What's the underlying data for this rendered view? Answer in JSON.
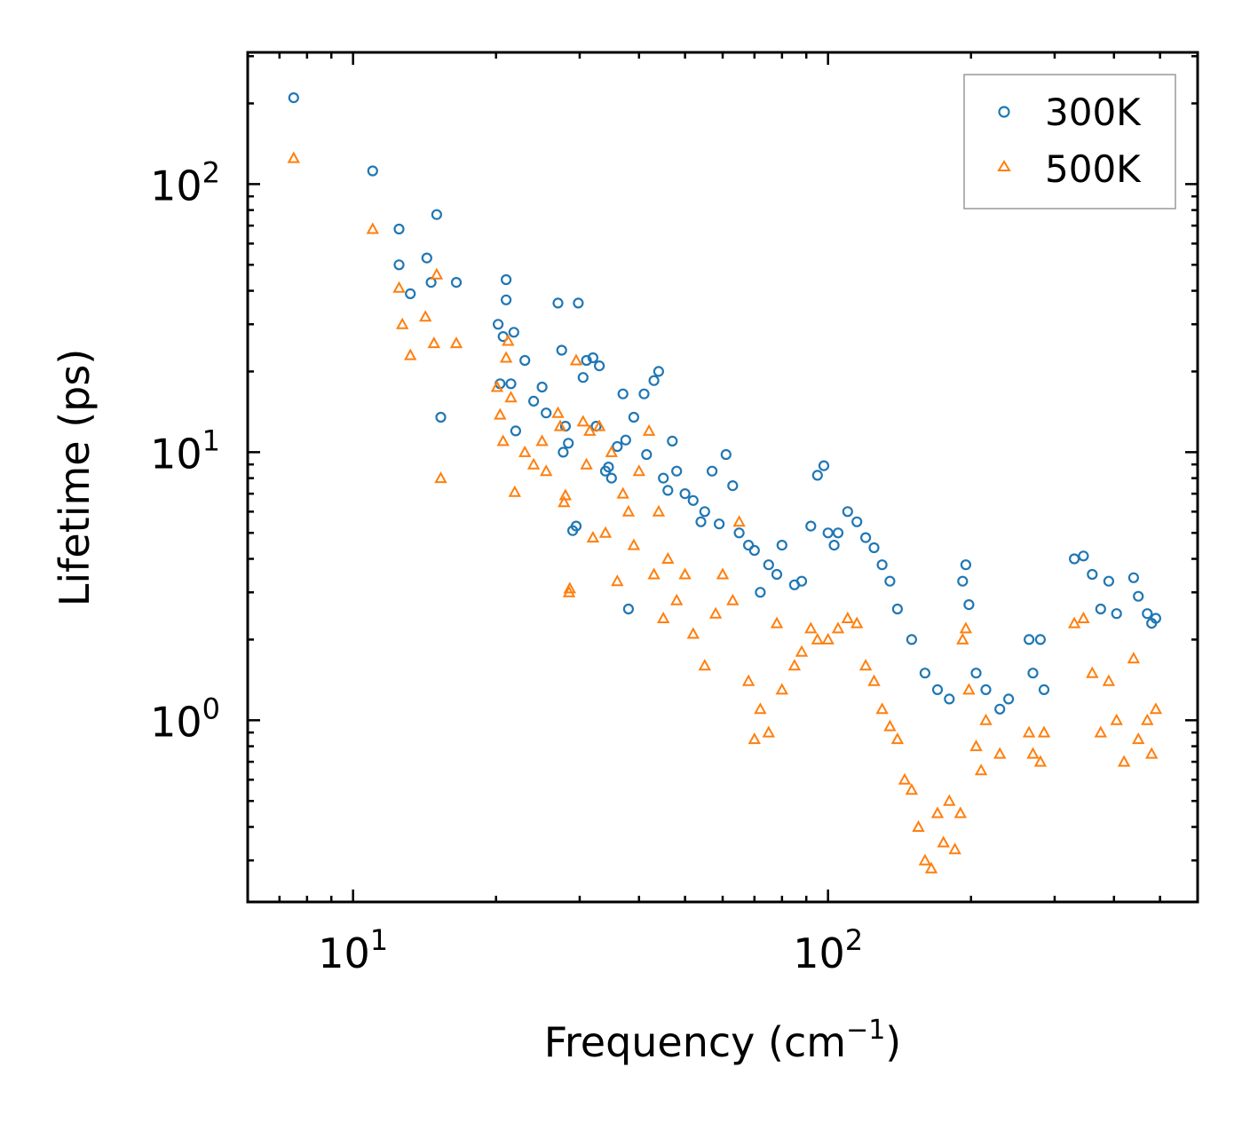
{
  "chart_data": {
    "type": "scatter",
    "title": "",
    "xlabel": "Frequency (cm",
    "xlabel_sup": "−1",
    "xlabel_tail": ")",
    "ylabel": "Lifetime (ps)",
    "xscale": "log",
    "yscale": "log",
    "xlim": [
      6.0,
      600
    ],
    "ylim": [
      0.21,
      310
    ],
    "x_ticks": [
      {
        "base": "10",
        "exp": "1",
        "value": 10
      },
      {
        "base": "10",
        "exp": "2",
        "value": 100
      }
    ],
    "y_ticks": [
      {
        "base": "10",
        "exp": "0",
        "value": 1
      },
      {
        "base": "10",
        "exp": "1",
        "value": 10
      },
      {
        "base": "10",
        "exp": "2",
        "value": 100
      }
    ],
    "legend_position": "top-right",
    "series": [
      {
        "name": "300K",
        "marker": "circle",
        "color": "#1f77b4",
        "points": [
          [
            7.5,
            210
          ],
          [
            11,
            112
          ],
          [
            12.5,
            68
          ],
          [
            12.5,
            50
          ],
          [
            13.2,
            39
          ],
          [
            14.3,
            53
          ],
          [
            14.6,
            43
          ],
          [
            15,
            77
          ],
          [
            15.3,
            13.5
          ],
          [
            16.5,
            43
          ],
          [
            20.2,
            30
          ],
          [
            20.4,
            18
          ],
          [
            20.7,
            27
          ],
          [
            21,
            37
          ],
          [
            21,
            44
          ],
          [
            21.5,
            18
          ],
          [
            21.8,
            28
          ],
          [
            22,
            12
          ],
          [
            23,
            22
          ],
          [
            24,
            15.5
          ],
          [
            25,
            17.5
          ],
          [
            25.5,
            14
          ],
          [
            27,
            36
          ],
          [
            27.5,
            24
          ],
          [
            27.7,
            10
          ],
          [
            28,
            12.5
          ],
          [
            28.4,
            10.8
          ],
          [
            29,
            5.1
          ],
          [
            29.5,
            5.3
          ],
          [
            29.8,
            36
          ],
          [
            30.5,
            19
          ],
          [
            31,
            22
          ],
          [
            32,
            22.5
          ],
          [
            32.5,
            12.5
          ],
          [
            33,
            21
          ],
          [
            34,
            8.5
          ],
          [
            34.5,
            8.8
          ],
          [
            35,
            8
          ],
          [
            36,
            10.5
          ],
          [
            37,
            16.5
          ],
          [
            37.5,
            11.1
          ],
          [
            38,
            2.6
          ],
          [
            39,
            13.5
          ],
          [
            41,
            16.5
          ],
          [
            41.5,
            9.8
          ],
          [
            43,
            18.5
          ],
          [
            44,
            20
          ],
          [
            45,
            8
          ],
          [
            46,
            7.2
          ],
          [
            47,
            11
          ],
          [
            48,
            8.5
          ],
          [
            50,
            7
          ],
          [
            52,
            6.6
          ],
          [
            54,
            5.5
          ],
          [
            55,
            6
          ],
          [
            57,
            8.5
          ],
          [
            59,
            5.4
          ],
          [
            61,
            9.8
          ],
          [
            63,
            7.5
          ],
          [
            65,
            5
          ],
          [
            68,
            4.5
          ],
          [
            70,
            4.3
          ],
          [
            72,
            3
          ],
          [
            75,
            3.8
          ],
          [
            78,
            3.5
          ],
          [
            80,
            4.5
          ],
          [
            85,
            3.2
          ],
          [
            88,
            3.3
          ],
          [
            92,
            5.3
          ],
          [
            95,
            8.2
          ],
          [
            98,
            8.9
          ],
          [
            100,
            5
          ],
          [
            103,
            4.5
          ],
          [
            105,
            5
          ],
          [
            110,
            6
          ],
          [
            115,
            5.5
          ],
          [
            120,
            4.8
          ],
          [
            125,
            4.4
          ],
          [
            130,
            3.8
          ],
          [
            135,
            3.3
          ],
          [
            140,
            2.6
          ],
          [
            150,
            2
          ],
          [
            160,
            1.5
          ],
          [
            170,
            1.3
          ],
          [
            180,
            1.2
          ],
          [
            192,
            3.3
          ],
          [
            195,
            3.8
          ],
          [
            198,
            2.7
          ],
          [
            205,
            1.5
          ],
          [
            215,
            1.3
          ],
          [
            230,
            1.1
          ],
          [
            240,
            1.2
          ],
          [
            265,
            2
          ],
          [
            270,
            1.5
          ],
          [
            280,
            2
          ],
          [
            285,
            1.3
          ],
          [
            330,
            4
          ],
          [
            345,
            4.1
          ],
          [
            360,
            3.5
          ],
          [
            375,
            2.6
          ],
          [
            390,
            3.3
          ],
          [
            405,
            2.5
          ],
          [
            440,
            3.4
          ],
          [
            450,
            2.9
          ],
          [
            470,
            2.5
          ],
          [
            480,
            2.3
          ],
          [
            490,
            2.4
          ]
        ]
      },
      {
        "name": "500K",
        "marker": "triangle",
        "color": "#ff7f0e",
        "points": [
          [
            7.5,
            125
          ],
          [
            11,
            68
          ],
          [
            12.5,
            41
          ],
          [
            12.7,
            30
          ],
          [
            13.2,
            23
          ],
          [
            14.2,
            32
          ],
          [
            14.8,
            25.5
          ],
          [
            15,
            46
          ],
          [
            15.3,
            8
          ],
          [
            16.5,
            25.5
          ],
          [
            20.1,
            17.5
          ],
          [
            20.4,
            13.8
          ],
          [
            20.7,
            11
          ],
          [
            21,
            22.5
          ],
          [
            21.2,
            26
          ],
          [
            21.5,
            16
          ],
          [
            21.9,
            7.1
          ],
          [
            23,
            10
          ],
          [
            24,
            9
          ],
          [
            25,
            11
          ],
          [
            25.5,
            8.5
          ],
          [
            27,
            14
          ],
          [
            27.3,
            12.5
          ],
          [
            27.8,
            6.5
          ],
          [
            28,
            6.9
          ],
          [
            28.5,
            3
          ],
          [
            28.6,
            3.1
          ],
          [
            29.5,
            22
          ],
          [
            30.5,
            13
          ],
          [
            31,
            9
          ],
          [
            31.5,
            12
          ],
          [
            32,
            4.8
          ],
          [
            33,
            12.5
          ],
          [
            34,
            5
          ],
          [
            35,
            10
          ],
          [
            36,
            3.3
          ],
          [
            37,
            7
          ],
          [
            38,
            6
          ],
          [
            39,
            4.5
          ],
          [
            40,
            8.5
          ],
          [
            42,
            12
          ],
          [
            43,
            3.5
          ],
          [
            44,
            6
          ],
          [
            45,
            2.4
          ],
          [
            46,
            4
          ],
          [
            48,
            2.8
          ],
          [
            50,
            3.5
          ],
          [
            52,
            2.1
          ],
          [
            55,
            1.6
          ],
          [
            58,
            2.5
          ],
          [
            60,
            3.5
          ],
          [
            63,
            2.8
          ],
          [
            65,
            5.5
          ],
          [
            68,
            1.4
          ],
          [
            70,
            0.85
          ],
          [
            72,
            1.1
          ],
          [
            75,
            0.9
          ],
          [
            78,
            2.3
          ],
          [
            80,
            1.3
          ],
          [
            85,
            1.6
          ],
          [
            88,
            1.8
          ],
          [
            92,
            2.2
          ],
          [
            95,
            2
          ],
          [
            100,
            2
          ],
          [
            105,
            2.2
          ],
          [
            110,
            2.4
          ],
          [
            115,
            2.3
          ],
          [
            120,
            1.6
          ],
          [
            125,
            1.4
          ],
          [
            130,
            1.1
          ],
          [
            135,
            0.95
          ],
          [
            140,
            0.85
          ],
          [
            145,
            0.6
          ],
          [
            150,
            0.55
          ],
          [
            155,
            0.4
          ],
          [
            160,
            0.3
          ],
          [
            165,
            0.28
          ],
          [
            170,
            0.45
          ],
          [
            175,
            0.35
          ],
          [
            180,
            0.5
          ],
          [
            185,
            0.33
          ],
          [
            190,
            0.45
          ],
          [
            192,
            2
          ],
          [
            195,
            2.2
          ],
          [
            198,
            1.3
          ],
          [
            205,
            0.8
          ],
          [
            210,
            0.65
          ],
          [
            215,
            1
          ],
          [
            230,
            0.75
          ],
          [
            265,
            0.9
          ],
          [
            270,
            0.75
          ],
          [
            280,
            0.7
          ],
          [
            285,
            0.9
          ],
          [
            330,
            2.3
          ],
          [
            345,
            2.4
          ],
          [
            360,
            1.5
          ],
          [
            375,
            0.9
          ],
          [
            390,
            1.4
          ],
          [
            405,
            1
          ],
          [
            420,
            0.7
          ],
          [
            440,
            1.7
          ],
          [
            450,
            0.85
          ],
          [
            470,
            1
          ],
          [
            480,
            0.75
          ],
          [
            490,
            1.1
          ]
        ]
      }
    ]
  }
}
